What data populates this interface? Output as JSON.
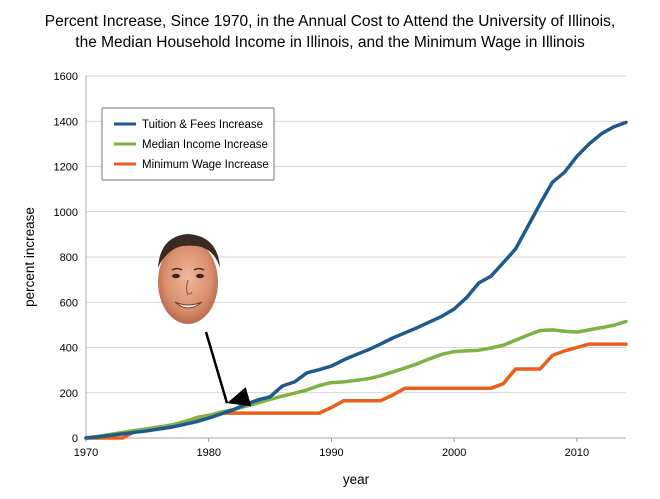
{
  "chart_data": {
    "type": "line",
    "title_lines": [
      "Percent Increase, Since 1970, in the Annual Cost to Attend the University of Illinois,",
      "the Median Household Income in Illinois, and the Minimum Wage in Illinois"
    ],
    "xlabel": "year",
    "ylabel": "percent increase",
    "xlim": [
      1970,
      2014
    ],
    "ylim": [
      0,
      1600
    ],
    "x_ticks": [
      1970,
      1980,
      1990,
      2000,
      2010
    ],
    "y_ticks": [
      0,
      200,
      400,
      600,
      800,
      1000,
      1200,
      1400,
      1600
    ],
    "grid": "horizontal",
    "legend_position": "top-left",
    "series": [
      {
        "name": "Tuition & Fees Increase",
        "color": "#1f5a8e",
        "points": [
          [
            1970,
            0
          ],
          [
            1971,
            5
          ],
          [
            1972,
            12
          ],
          [
            1973,
            18
          ],
          [
            1974,
            25
          ],
          [
            1975,
            32
          ],
          [
            1976,
            40
          ],
          [
            1977,
            48
          ],
          [
            1978,
            60
          ],
          [
            1979,
            72
          ],
          [
            1980,
            88
          ],
          [
            1981,
            106
          ],
          [
            1982,
            125
          ],
          [
            1983,
            148
          ],
          [
            1984,
            168
          ],
          [
            1985,
            182
          ],
          [
            1986,
            230
          ],
          [
            1987,
            248
          ],
          [
            1988,
            288
          ],
          [
            1989,
            302
          ],
          [
            1990,
            318
          ],
          [
            1991,
            345
          ],
          [
            1992,
            368
          ],
          [
            1993,
            390
          ],
          [
            1994,
            415
          ],
          [
            1995,
            442
          ],
          [
            1996,
            465
          ],
          [
            1997,
            488
          ],
          [
            1998,
            513
          ],
          [
            1999,
            538
          ],
          [
            2000,
            570
          ],
          [
            2001,
            620
          ],
          [
            2002,
            685
          ],
          [
            2003,
            715
          ],
          [
            2004,
            775
          ],
          [
            2005,
            835
          ],
          [
            2006,
            935
          ],
          [
            2007,
            1035
          ],
          [
            2008,
            1130
          ],
          [
            2009,
            1175
          ],
          [
            2010,
            1245
          ],
          [
            2011,
            1300
          ],
          [
            2012,
            1345
          ],
          [
            2013,
            1375
          ],
          [
            2014,
            1395
          ]
        ]
      },
      {
        "name": "Median Income Increase",
        "color": "#7cb342",
        "points": [
          [
            1970,
            0
          ],
          [
            1971,
            8
          ],
          [
            1972,
            16
          ],
          [
            1973,
            25
          ],
          [
            1974,
            33
          ],
          [
            1975,
            40
          ],
          [
            1976,
            48
          ],
          [
            1977,
            58
          ],
          [
            1978,
            72
          ],
          [
            1979,
            88
          ],
          [
            1980,
            100
          ],
          [
            1981,
            115
          ],
          [
            1982,
            125
          ],
          [
            1983,
            140
          ],
          [
            1984,
            155
          ],
          [
            1985,
            170
          ],
          [
            1986,
            185
          ],
          [
            1987,
            198
          ],
          [
            1988,
            212
          ],
          [
            1989,
            232
          ],
          [
            1990,
            245
          ],
          [
            1991,
            248
          ],
          [
            1992,
            255
          ],
          [
            1993,
            262
          ],
          [
            1994,
            275
          ],
          [
            1995,
            292
          ],
          [
            1996,
            310
          ],
          [
            1997,
            328
          ],
          [
            1998,
            350
          ],
          [
            1999,
            370
          ],
          [
            2000,
            382
          ],
          [
            2001,
            385
          ],
          [
            2002,
            388
          ],
          [
            2003,
            398
          ],
          [
            2004,
            410
          ],
          [
            2005,
            432
          ],
          [
            2006,
            455
          ],
          [
            2007,
            475
          ],
          [
            2008,
            478
          ],
          [
            2009,
            472
          ],
          [
            2010,
            468
          ],
          [
            2011,
            478
          ],
          [
            2012,
            488
          ],
          [
            2013,
            498
          ],
          [
            2014,
            515
          ]
        ]
      },
      {
        "name": "Minimum Wage Increase",
        "color": "#e8601c",
        "points": [
          [
            1970,
            0
          ],
          [
            1973,
            0
          ],
          [
            1974,
            30
          ],
          [
            1975,
            40
          ],
          [
            1976,
            50
          ],
          [
            1977,
            50
          ],
          [
            1978,
            70
          ],
          [
            1979,
            90
          ],
          [
            1980,
            100
          ],
          [
            1981,
            110
          ],
          [
            1989,
            110
          ],
          [
            1990,
            135
          ],
          [
            1991,
            165
          ],
          [
            1994,
            165
          ],
          [
            1995,
            190
          ],
          [
            1996,
            220
          ],
          [
            2003,
            220
          ],
          [
            2004,
            240
          ],
          [
            2005,
            305
          ],
          [
            2007,
            305
          ],
          [
            2008,
            365
          ],
          [
            2009,
            385
          ],
          [
            2010,
            400
          ],
          [
            2011,
            415
          ],
          [
            2014,
            415
          ]
        ]
      }
    ],
    "annotation": {
      "type": "arrow",
      "from_label": "portrait",
      "points_to": [
        1981,
        110
      ]
    }
  }
}
